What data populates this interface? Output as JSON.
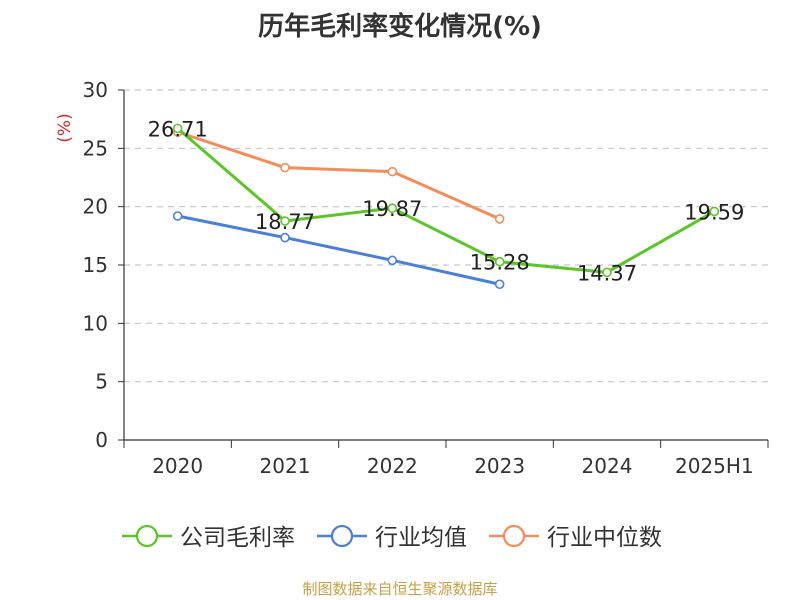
{
  "chart_data": {
    "type": "line",
    "title": "历年毛利率变化情况(%)",
    "ylabel": "(%)",
    "categories": [
      "2020",
      "2021",
      "2022",
      "2023",
      "2024",
      "2025H1"
    ],
    "ylim": [
      0,
      30
    ],
    "yticks": [
      0,
      5,
      10,
      15,
      20,
      25,
      30
    ],
    "grid": true,
    "legend_position": "bottom",
    "series": [
      {
        "name": "公司毛利率",
        "color": "#5cc628",
        "values": [
          26.71,
          18.77,
          19.87,
          15.28,
          14.37,
          19.59
        ],
        "labels": [
          "26.71",
          "18.77",
          "19.87",
          "15.28",
          "14.37",
          "19.59"
        ]
      },
      {
        "name": "行业均值",
        "color": "#4a7fdc",
        "values": [
          19.2,
          17.35,
          15.4,
          13.35,
          null,
          null
        ]
      },
      {
        "name": "行业中位数",
        "color": "#f58d5a",
        "values": [
          26.4,
          23.35,
          23.0,
          18.95,
          null,
          null
        ]
      }
    ]
  },
  "source": "制图数据来自恒生聚源数据库"
}
